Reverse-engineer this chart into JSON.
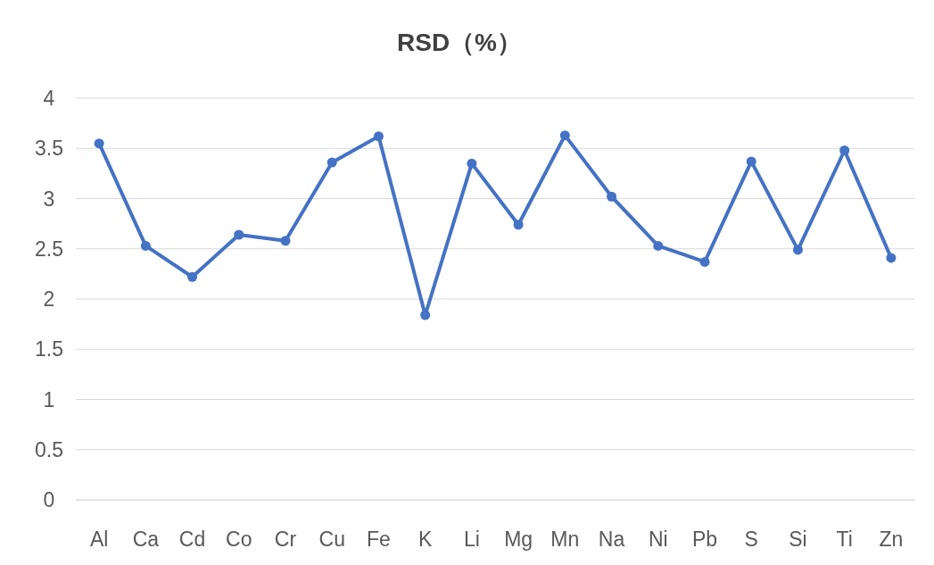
{
  "chart_data": {
    "type": "line",
    "title": "RSD（%）",
    "categories": [
      "Al",
      "Ca",
      "Cd",
      "Co",
      "Cr",
      "Cu",
      "Fe",
      "K",
      "Li",
      "Mg",
      "Mn",
      "Na",
      "Ni",
      "Pb",
      "S",
      "Si",
      "Ti",
      "Zn"
    ],
    "values": [
      3.55,
      2.53,
      2.22,
      2.64,
      2.58,
      3.36,
      3.62,
      1.84,
      3.35,
      2.74,
      3.63,
      3.02,
      2.53,
      2.37,
      3.37,
      2.49,
      3.48,
      2.41
    ],
    "color": "#4472c4",
    "ylim": [
      0,
      4
    ],
    "yticks": [
      0,
      0.5,
      1,
      1.5,
      2,
      2.5,
      3,
      3.5,
      4
    ],
    "grid": "y",
    "marker": "circle",
    "line_style": "solid"
  }
}
